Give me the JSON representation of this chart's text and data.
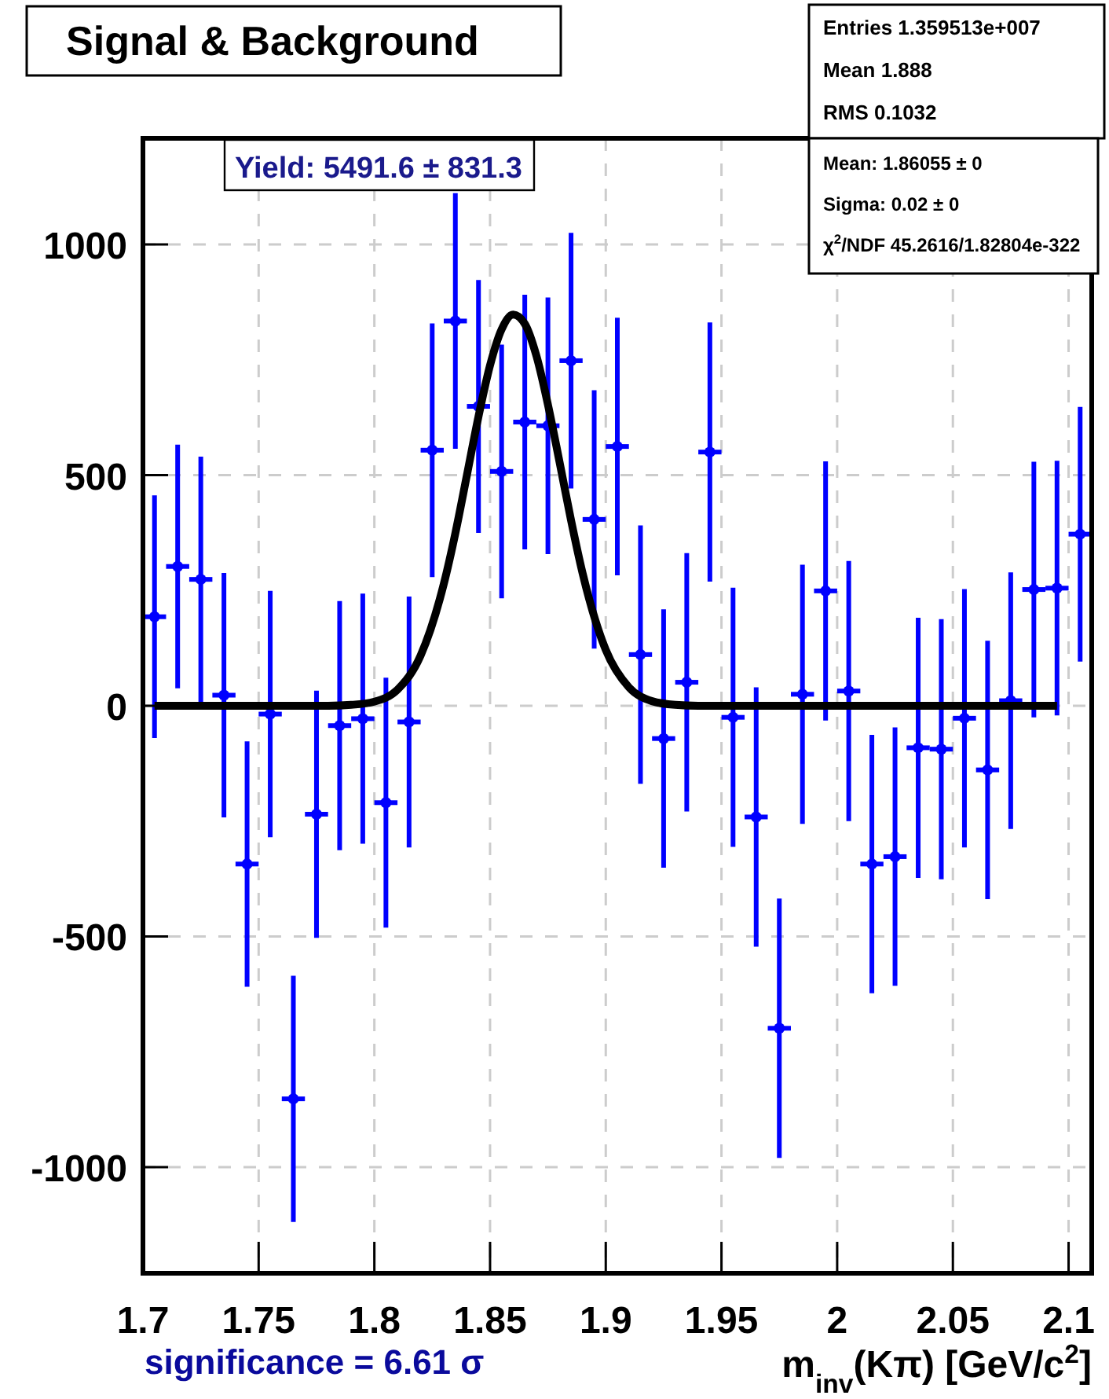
{
  "chart_data": {
    "type": "scatter",
    "title": "Signal & Background",
    "xlabel": "m$_{inv}$(Kπ) [GeV/c$^{2}$]",
    "annotations": [
      "Entries 1.359513e+007",
      "Mean 1.888",
      "RMS 0.1032",
      "Mean: 1.86055 ± 0",
      "Sigma: 0.02 ± 0",
      "χ$^{2}$/NDF 45.2616/1.82804e-322",
      "Yield: 5491.6 ± 831.3",
      "significance = 6.61 σ"
    ],
    "xlim": [
      1.7,
      2.11
    ],
    "xticks": [
      1.7,
      1.75,
      1.8,
      1.85,
      1.9,
      1.95,
      2,
      2.05,
      2.1
    ],
    "ylim": [
      -1230,
      1230
    ],
    "yticks": [
      -1000,
      -500,
      0,
      500,
      1000
    ],
    "grid": true,
    "series": [
      {
        "color": "#0000ff",
        "marker": "circle",
        "xerrors": [
          0.005,
          0.005,
          0.005,
          0.005,
          0.005,
          0.005,
          0.005,
          0.005,
          0.005,
          0.005,
          0.005,
          0.005,
          0.005,
          0.005,
          0.005,
          0.005,
          0.005,
          0.005,
          0.005,
          0.005,
          0.005,
          0.005,
          0.005,
          0.005,
          0.005,
          0.005,
          0.005,
          0.005,
          0.005,
          0.005,
          0.005,
          0.005,
          0.005,
          0.005,
          0.005,
          0.005,
          0.005,
          0.005,
          0.005,
          0.005,
          0.005
        ],
        "x": [
          1.705,
          1.715,
          1.725,
          1.735,
          1.745,
          1.755,
          1.765,
          1.775,
          1.785,
          1.795,
          1.805,
          1.815,
          1.825,
          1.835,
          1.845,
          1.855,
          1.865,
          1.875,
          1.885,
          1.895,
          1.905,
          1.915,
          1.925,
          1.935,
          1.945,
          1.955,
          1.965,
          1.975,
          1.985,
          1.995,
          2.005,
          2.015,
          2.025,
          2.035,
          2.045,
          2.055,
          2.065,
          2.075,
          2.085,
          2.095,
          2.105
        ],
        "values": [
          193,
          302,
          274,
          23,
          -343,
          -18,
          -852,
          -235,
          -43,
          -28,
          -210,
          -35,
          554,
          834,
          649,
          508,
          615,
          607,
          748,
          404,
          562,
          111,
          -71,
          51,
          550,
          -25,
          -241,
          -699,
          25,
          249,
          32,
          -343,
          -327,
          -91,
          -94,
          -27,
          -139,
          11,
          252,
          255,
          372
        ],
        "errors": [
          263,
          264,
          266,
          265,
          266,
          267,
          267,
          268,
          270,
          271,
          271,
          272,
          275,
          277,
          274,
          275,
          276,
          278,
          277,
          280,
          279,
          280,
          280,
          280,
          281,
          281,
          281,
          281,
          281,
          281,
          282,
          280,
          280,
          282,
          282,
          280,
          280,
          278,
          277,
          276,
          276
        ]
      },
      {
        "type": "line",
        "color": "#000000",
        "line_style": "solid",
        "x": [
          1.705,
          1.78,
          1.79,
          1.8,
          1.81,
          1.82,
          1.83,
          1.835,
          1.84,
          1.845,
          1.85,
          1.855,
          1.86,
          1.865,
          1.87,
          1.875,
          1.88,
          1.885,
          1.89,
          1.9,
          1.91,
          1.92,
          1.93,
          1.94,
          2.095
        ],
        "values": [
          0,
          0,
          2,
          9,
          35,
          109,
          264,
          374,
          500,
          627,
          738,
          816,
          848,
          828,
          759,
          653,
          529,
          402,
          287,
          121,
          40,
          10,
          2,
          0,
          0
        ]
      }
    ]
  }
}
